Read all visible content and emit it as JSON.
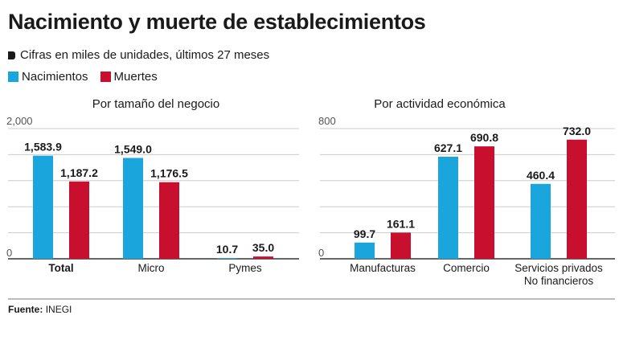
{
  "header": {
    "title": "Nacimiento y muerte de establecimientos",
    "subtitle": "Cifras en miles de unidades, últimos 27 meses"
  },
  "legend": [
    {
      "label": "Nacimientos",
      "color": "#1aa6dc"
    },
    {
      "label": "Muertes",
      "color": "#c8102e"
    }
  ],
  "colors": {
    "nacimientos": "#1aa6dc",
    "muertes": "#c8102e",
    "grid": "#cccccc",
    "axis": "#333333"
  },
  "source": {
    "label": "Fuente:",
    "text": "INEGI"
  },
  "chart_data": [
    {
      "type": "bar",
      "title": "Por tamaño del negocio",
      "categories": [
        "Total",
        "Micro",
        "Pymes"
      ],
      "bold_categories": [
        "Total"
      ],
      "series": [
        {
          "name": "Nacimientos",
          "values": [
            1583.9,
            1549.0,
            10.7
          ],
          "labels": [
            "1,583.9",
            "1,549.0",
            "10.7"
          ]
        },
        {
          "name": "Muertes",
          "values": [
            1187.2,
            1176.5,
            35.0
          ],
          "labels": [
            "1,187.2",
            "1,176.5",
            "35.0"
          ]
        }
      ],
      "ylim": [
        0,
        2000
      ],
      "ytick_labels": [
        "0",
        "2,000"
      ],
      "grid": true
    },
    {
      "type": "bar",
      "title": "Por actividad económica",
      "categories": [
        "Manufacturas",
        "Comercio",
        "Servicios privados\nNo financieros"
      ],
      "bold_categories": [],
      "series": [
        {
          "name": "Nacimientos",
          "values": [
            99.7,
            627.1,
            460.4
          ],
          "labels": [
            "99.7",
            "627.1",
            "460.4"
          ]
        },
        {
          "name": "Muertes",
          "values": [
            161.1,
            690.8,
            732.0
          ],
          "labels": [
            "161.1",
            "690.8",
            "732.0"
          ]
        }
      ],
      "ylim": [
        0,
        800
      ],
      "ytick_labels": [
        "0",
        "800"
      ],
      "grid": true
    }
  ]
}
